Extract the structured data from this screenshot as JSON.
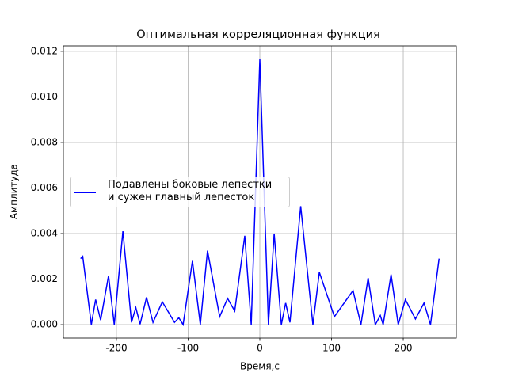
{
  "chart_data": {
    "type": "line",
    "title": "Оптимальная корреляционная функция",
    "xlabel": "Время,с",
    "ylabel": "Амплитуда",
    "x": [
      -250,
      -247,
      -235,
      -229,
      -222,
      -211,
      -203,
      -191,
      -179,
      -173,
      -167,
      -158,
      -149,
      -136,
      -119,
      -113,
      -107,
      -94,
      -83,
      -73,
      -56,
      -45,
      -35,
      -21,
      -12,
      0,
      12,
      20,
      30,
      36,
      42,
      57,
      74,
      83,
      104,
      130,
      141,
      151,
      161,
      168,
      172,
      183,
      193,
      203,
      217,
      229,
      238,
      250
    ],
    "series": [
      {
        "name": "Подавлены боковые лепестки\nи сужен главный лепесток",
        "color": "#0000ff",
        "values": [
          0.0029,
          0.003,
          0,
          0.0011,
          0.0002,
          0.00215,
          0,
          0.0041,
          0.0001,
          0.00075,
          2e-05,
          0.0012,
          0.0001,
          0.001,
          0.0001,
          0.0003,
          0,
          0.0028,
          0,
          0.00325,
          0.00035,
          0.00115,
          0.0006,
          0.0039,
          0,
          0.01165,
          0,
          0.004,
          0,
          0.00095,
          0.0001,
          0.0052,
          0,
          0.0023,
          0.00035,
          0.0015,
          0,
          0.00205,
          0,
          0.0004,
          0,
          0.0022,
          0,
          0.0011,
          0.00025,
          0.00095,
          0,
          0.0029
        ]
      }
    ],
    "xlim": [
      -274,
      274
    ],
    "ylim": [
      -0.00059,
      0.01224
    ],
    "xticks": [
      -200,
      -100,
      0,
      100,
      200
    ],
    "yticks": [
      {
        "value": 0,
        "label": "0.000"
      },
      {
        "value": 0.002,
        "label": "0.002"
      },
      {
        "value": 0.004,
        "label": "0.004"
      },
      {
        "value": 0.006,
        "label": "0.006"
      },
      {
        "value": 0.008,
        "label": "0.008"
      },
      {
        "value": 0.01,
        "label": "0.010"
      },
      {
        "value": 0.012,
        "label": "0.012"
      }
    ],
    "grid": true,
    "legend": "center left"
  }
}
